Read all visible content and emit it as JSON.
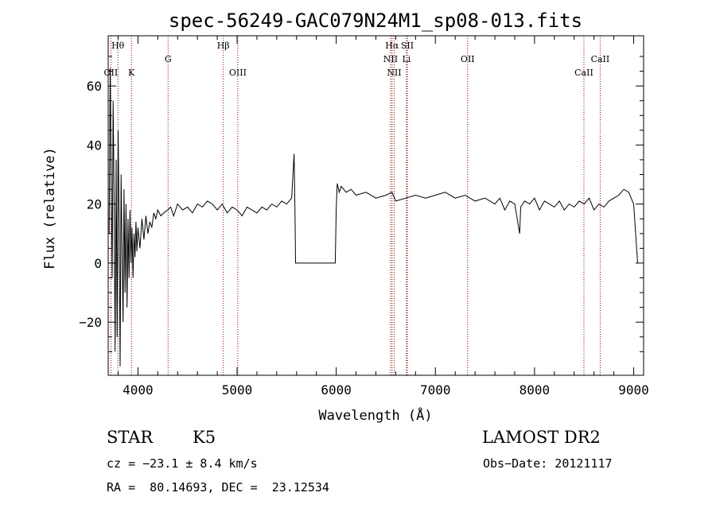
{
  "chart_data": {
    "type": "line",
    "title": "spec-56249-GAC079N24M1_sp08-013.fits",
    "xlabel": "Wavelength (Å)",
    "ylabel": "Flux (relative)",
    "xlim": [
      3700,
      9100
    ],
    "ylim": [
      -38,
      77
    ],
    "x_ticks": [
      4000,
      5000,
      6000,
      7000,
      8000,
      9000
    ],
    "y_ticks": [
      -20,
      0,
      20,
      40,
      60
    ],
    "grid": false,
    "line_color": "#000000",
    "marker_color": "#8b0000",
    "series": [
      {
        "x": [
          3710,
          3720,
          3730,
          3740,
          3750,
          3760,
          3770,
          3780,
          3790,
          3800,
          3810,
          3820,
          3830,
          3840,
          3850,
          3860,
          3870,
          3880,
          3890,
          3900,
          3910,
          3920,
          3930,
          3940,
          3950,
          3960,
          3970,
          3980,
          3990,
          4000,
          4020,
          4040,
          4060,
          4080,
          4100,
          4120,
          4140,
          4160,
          4180,
          4200,
          4230,
          4260,
          4300,
          4330,
          4360,
          4400,
          4450,
          4500,
          4550,
          4600,
          4650,
          4700,
          4750,
          4800,
          4850,
          4900,
          4950,
          5000,
          5050,
          5100,
          5150,
          5200,
          5250,
          5300,
          5350,
          5400,
          5450,
          5500,
          5550,
          5575,
          5585,
          5590,
          5600,
          5700,
          5800,
          5900,
          5990,
          6000,
          6010,
          6030,
          6050,
          6100,
          6150,
          6200,
          6300,
          6400,
          6500,
          6563,
          6600,
          6700,
          6800,
          6900,
          7000,
          7100,
          7200,
          7300,
          7400,
          7500,
          7600,
          7650,
          7700,
          7750,
          7800,
          7850,
          7860,
          7900,
          7950,
          8000,
          8050,
          8100,
          8150,
          8200,
          8250,
          8300,
          8350,
          8400,
          8450,
          8500,
          8550,
          8600,
          8650,
          8700,
          8750,
          8800,
          8850,
          8900,
          8950,
          9000,
          9040
        ],
        "y": [
          10,
          66,
          30,
          -5,
          55,
          20,
          -30,
          35,
          -25,
          45,
          15,
          -35,
          30,
          5,
          -20,
          25,
          -10,
          20,
          -15,
          15,
          -5,
          18,
          0,
          12,
          -5,
          10,
          2,
          14,
          4,
          12,
          5,
          15,
          8,
          16,
          10,
          14,
          12,
          17,
          15,
          18,
          16,
          17,
          18,
          19,
          16,
          20,
          18,
          19,
          17,
          20,
          19,
          21,
          20,
          18,
          20,
          17,
          19,
          18,
          16,
          19,
          18,
          17,
          19,
          18,
          20,
          19,
          21,
          20,
          22,
          37,
          15,
          0,
          0,
          0,
          0,
          0,
          0,
          18,
          27,
          24,
          26,
          24,
          25,
          23,
          24,
          22,
          23,
          24,
          21,
          22,
          23,
          22,
          23,
          24,
          22,
          23,
          21,
          22,
          20,
          22,
          18,
          21,
          20,
          10,
          19,
          21,
          20,
          22,
          18,
          21,
          20,
          19,
          21,
          18,
          20,
          19,
          21,
          20,
          22,
          18,
          20,
          19,
          21,
          22,
          23,
          25,
          24,
          20,
          0
        ]
      }
    ],
    "lines": [
      {
        "label": "Hθ",
        "wavelength": 3798,
        "row": 1
      },
      {
        "label": "OII",
        "wavelength": 3727,
        "row": 3
      },
      {
        "label": "K",
        "wavelength": 3934,
        "row": 3
      },
      {
        "label": "G",
        "wavelength": 4304,
        "row": 2
      },
      {
        "label": "Hβ",
        "wavelength": 4861,
        "row": 1
      },
      {
        "label": "OIII",
        "wavelength": 5007,
        "row": 3
      },
      {
        "label": "Hα",
        "wavelength": 6563,
        "row": 1
      },
      {
        "label": "NII",
        "wavelength": 6548,
        "row": 2
      },
      {
        "label": "NII",
        "wavelength": 6584,
        "row": 3
      },
      {
        "label": "SII",
        "wavelength": 6717,
        "row": 1
      },
      {
        "label": "Li",
        "wavelength": 6708,
        "row": 2
      },
      {
        "label": "OII",
        "wavelength": 7325,
        "row": 2
      },
      {
        "label": "CaII",
        "wavelength": 8498,
        "row": 3
      },
      {
        "label": "CaII",
        "wavelength": 8662,
        "row": 2
      }
    ]
  },
  "info": {
    "object_class": "STAR",
    "subclass": "K5",
    "survey": "LAMOST DR2",
    "cz": "cz = −23.1 ± 8.4 km/s",
    "obs_date": "Obs−Date: 20121117",
    "coords": "RA =  80.14693, DEC =  23.12534"
  }
}
